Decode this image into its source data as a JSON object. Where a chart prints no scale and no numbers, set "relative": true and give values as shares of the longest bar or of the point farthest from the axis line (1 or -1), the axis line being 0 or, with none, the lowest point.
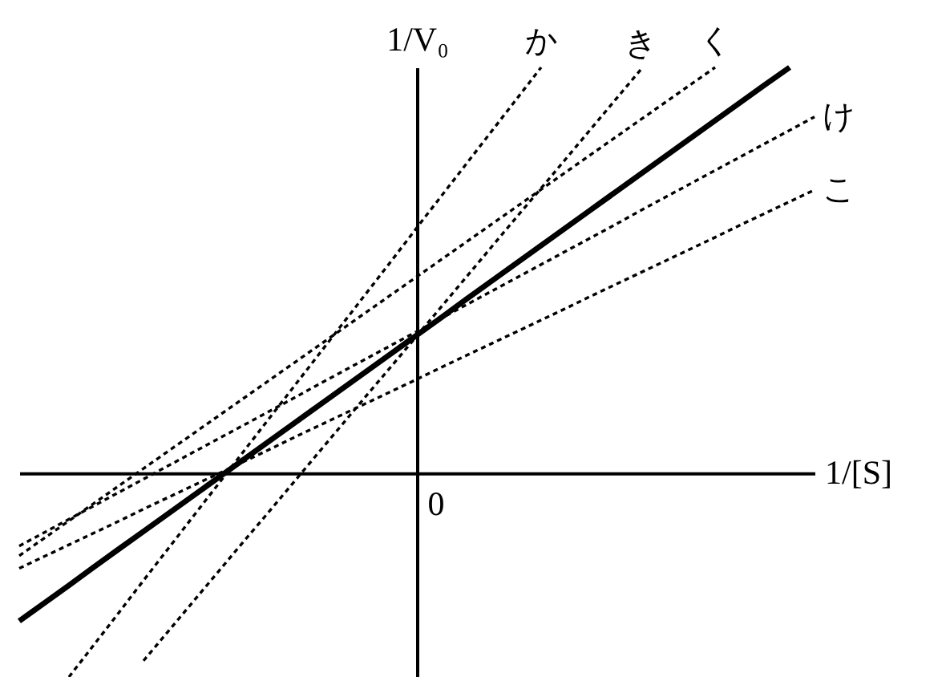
{
  "chart_data": {
    "type": "line",
    "relative": true,
    "xlabel": "1/[S]",
    "ylabel": "1/V₀",
    "annotations": [
      "0"
    ],
    "categories": [
      null,
      null,
      null,
      null,
      null,
      null,
      null,
      null,
      null,
      null,
      null,
      null,
      null,
      null,
      null,
      null,
      null,
      null,
      null,
      null,
      null,
      null,
      null,
      null,
      null,
      null,
      null,
      null,
      null,
      null,
      null,
      null,
      null
    ],
    "series": [
      {
        "name": "か",
        "color": "#000000",
        "line_style": "dashed",
        "values": [
          null,
          null,
          -0.503,
          -0.424,
          -0.345,
          -0.265,
          -0.186,
          -0.107,
          -0.028,
          0.051,
          0.13,
          0.209,
          0.288,
          0.367,
          0.446,
          0.525,
          0.605,
          0.684,
          0.763,
          0.842,
          0.921,
          1.0,
          null,
          null,
          null,
          null,
          null,
          null,
          null,
          null,
          null,
          null,
          null
        ]
      },
      {
        "name": "き",
        "color": "#000000",
        "line_style": "dashed",
        "values": [
          null,
          null,
          null,
          null,
          null,
          -0.463,
          -0.39,
          -0.317,
          -0.244,
          -0.171,
          -0.099,
          -0.026,
          0.047,
          0.12,
          0.193,
          0.265,
          0.338,
          0.411,
          0.484,
          0.557,
          0.63,
          0.702,
          0.775,
          0.848,
          0.921,
          0.994,
          null,
          null,
          null,
          null,
          null,
          null,
          null
        ]
      },
      {
        "name": "く",
        "color": "#000000",
        "line_style": "dashed",
        "values": [
          -0.204,
          -0.161,
          -0.118,
          -0.075,
          -0.032,
          0.011,
          0.054,
          0.097,
          0.14,
          0.183,
          0.226,
          0.269,
          0.312,
          0.355,
          0.398,
          0.441,
          0.484,
          0.527,
          0.57,
          0.613,
          0.656,
          0.699,
          0.742,
          0.785,
          0.828,
          0.871,
          0.914,
          0.957,
          1.0,
          null,
          null,
          null,
          null
        ]
      },
      {
        "name": "け",
        "color": "#000000",
        "line_style": "dashed",
        "values": [
          -0.18,
          -0.147,
          -0.114,
          -0.081,
          -0.048,
          -0.015,
          0.018,
          0.051,
          0.084,
          0.117,
          0.15,
          0.183,
          0.217,
          0.25,
          0.283,
          0.316,
          0.349,
          0.382,
          0.415,
          0.448,
          0.481,
          0.514,
          0.547,
          0.58,
          0.613,
          0.647,
          0.68,
          0.713,
          0.746,
          0.779,
          0.812,
          0.845,
          0.878
        ]
      },
      {
        "name": "こ",
        "color": "#000000",
        "line_style": "dashed",
        "values": [
          -0.235,
          -0.206,
          -0.177,
          -0.148,
          -0.119,
          -0.089,
          -0.06,
          -0.031,
          -0.002,
          0.027,
          0.056,
          0.086,
          0.115,
          0.144,
          0.173,
          0.202,
          0.231,
          0.261,
          0.29,
          0.319,
          0.348,
          0.377,
          0.406,
          0.436,
          0.465,
          0.494,
          0.523,
          0.552,
          0.581,
          0.611,
          0.64,
          0.669,
          0.698
        ]
      },
      {
        "color": "#000000",
        "line_style": "solid",
        "values": [
          -0.365,
          -0.321,
          -0.277,
          -0.232,
          -0.188,
          -0.144,
          -0.1,
          -0.056,
          -0.012,
          0.032,
          0.076,
          0.12,
          0.164,
          0.208,
          0.252,
          0.296,
          0.34,
          0.384,
          0.429,
          0.473,
          0.517,
          0.561,
          0.605,
          0.649,
          0.693,
          0.737,
          0.781,
          0.825,
          0.869,
          0.913,
          0.957,
          1.0,
          null
        ]
      }
    ]
  }
}
